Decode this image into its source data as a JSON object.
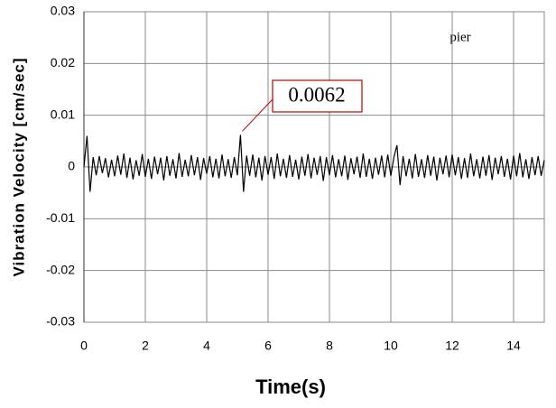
{
  "chart_data": {
    "type": "line",
    "xlabel": "Time(s)",
    "ylabel": "Vibration Velocity [cm/sec]",
    "legend_text": "pier",
    "annotations": [
      {
        "label": "0.0062",
        "x": 5.1,
        "y": 0.0062
      }
    ],
    "xlim": [
      0,
      15
    ],
    "xticks": [
      0,
      2,
      4,
      6,
      8,
      10,
      12,
      14
    ],
    "ylim": [
      -0.03,
      0.03
    ],
    "yticks": [
      -0.03,
      -0.02,
      -0.01,
      0,
      0.01,
      0.02,
      0.03
    ],
    "grid": true,
    "x": [
      0,
      0.1,
      0.2,
      0.3,
      0.4,
      0.5,
      0.6,
      0.7,
      0.8,
      0.9,
      1,
      1.1,
      1.2,
      1.3,
      1.4,
      1.5,
      1.6,
      1.7,
      1.8,
      1.9,
      2,
      2.1,
      2.2,
      2.3,
      2.4,
      2.5,
      2.6,
      2.7,
      2.8,
      2.9,
      3,
      3.1,
      3.2,
      3.3,
      3.4,
      3.5,
      3.6,
      3.7,
      3.8,
      3.9,
      4,
      4.1,
      4.2,
      4.3,
      4.4,
      4.5,
      4.6,
      4.7,
      4.8,
      4.9,
      5,
      5.1,
      5.2,
      5.3,
      5.4,
      5.5,
      5.6,
      5.7,
      5.8,
      5.9,
      6,
      6.1,
      6.2,
      6.3,
      6.4,
      6.5,
      6.6,
      6.7,
      6.8,
      6.9,
      7,
      7.1,
      7.2,
      7.3,
      7.4,
      7.5,
      7.6,
      7.7,
      7.8,
      7.9,
      8,
      8.1,
      8.2,
      8.3,
      8.4,
      8.5,
      8.6,
      8.7,
      8.8,
      8.9,
      9,
      9.1,
      9.2,
      9.3,
      9.4,
      9.5,
      9.6,
      9.7,
      9.8,
      9.9,
      10,
      10.1,
      10.2,
      10.3,
      10.4,
      10.5,
      10.6,
      10.7,
      10.8,
      10.9,
      11,
      11.1,
      11.2,
      11.3,
      11.4,
      11.5,
      11.6,
      11.7,
      11.8,
      11.9,
      12,
      12.1,
      12.2,
      12.3,
      12.4,
      12.5,
      12.6,
      12.7,
      12.8,
      12.9,
      13,
      13.1,
      13.2,
      13.3,
      13.4,
      13.5,
      13.6,
      13.7,
      13.8,
      13.9,
      14,
      14.1,
      14.2,
      14.3,
      14.4,
      14.5,
      14.6,
      14.7,
      14.8,
      14.9,
      15
    ],
    "series": [
      {
        "name": "pier",
        "color": "#000000",
        "values": [
          0,
          0.006,
          -0.0048,
          0.0019,
          -0.0016,
          0.0021,
          -0.0012,
          0.0017,
          -0.002,
          0.0014,
          -0.0018,
          0.0022,
          -0.0015,
          0.0026,
          -0.0021,
          0.0018,
          -0.0024,
          0.0013,
          -0.0017,
          0.0025,
          -0.0019,
          0.0016,
          -0.0023,
          0.002,
          -0.0014,
          0.0018,
          -0.0026,
          0.0021,
          -0.0017,
          0.0015,
          -0.0022,
          0.0027,
          -0.0019,
          0.0014,
          -0.0018,
          0.0023,
          -0.0016,
          0.0019,
          -0.0025,
          0.0017,
          -0.0013,
          0.0021,
          -0.002,
          0.0016,
          -0.0022,
          0.0024,
          -0.0018,
          0.0015,
          -0.0021,
          0.0019,
          -0.0016,
          0.0062,
          -0.0048,
          0.0022,
          -0.0017,
          0.0024,
          -0.002,
          0.0018,
          -0.0026,
          0.0021,
          -0.0015,
          0.0019,
          -0.0023,
          0.0026,
          -0.0018,
          0.0016,
          -0.0021,
          0.0023,
          -0.0019,
          0.0014,
          -0.0024,
          0.002,
          -0.0017,
          0.0025,
          -0.0022,
          0.0018,
          -0.0015,
          0.0021,
          -0.0027,
          0.0019,
          -0.0016,
          0.0023,
          -0.002,
          0.0015,
          -0.0018,
          0.0022,
          -0.0025,
          0.0017,
          -0.0014,
          0.002,
          -0.0021,
          0.0026,
          -0.0019,
          0.0016,
          -0.0023,
          0.0018,
          -0.0015,
          0.0022,
          -0.002,
          0.0024,
          -0.0017,
          0.0019,
          0.0042,
          -0.0035,
          0.0021,
          -0.0018,
          0.0016,
          -0.0022,
          0.0025,
          -0.0019,
          0.0015,
          -0.0021,
          0.0023,
          -0.0017,
          0.002,
          -0.0026,
          0.0018,
          -0.0014,
          0.0022,
          -0.002,
          0.0024,
          -0.0016,
          0.0019,
          -0.0023,
          0.0017,
          -0.0021,
          0.0026,
          -0.0018,
          0.0015,
          -0.0022,
          0.002,
          -0.0017,
          0.0023,
          -0.0025,
          0.0018,
          -0.0014,
          0.0021,
          -0.0019,
          0.0016,
          -0.0024,
          0.0022,
          -0.0018,
          0.0027,
          -0.002,
          0.0015,
          -0.0023,
          0.0019,
          -0.0016,
          0.0021,
          -0.0017,
          0.0013
        ]
      }
    ]
  }
}
